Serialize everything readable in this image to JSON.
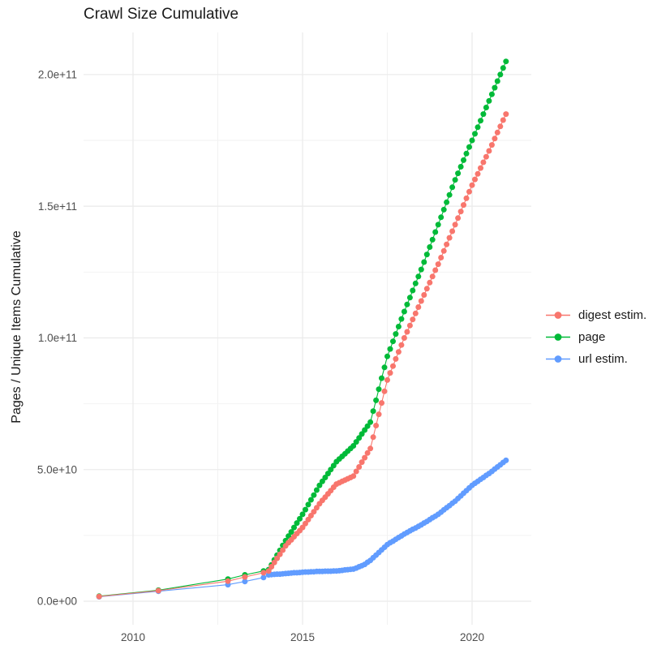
{
  "title": "Crawl Size Cumulative",
  "y_axis_title": "Pages / Unique Items Cumulative",
  "colors": {
    "background": "#FFFFFF",
    "digest": "#F8766D",
    "page": "#00BA38",
    "url": "#619CFF",
    "grid_major": "#EBEBEB",
    "grid_minor": "#F2F2F2",
    "tick_text": "#4D4D4D",
    "title_text": "#1A1A1A"
  },
  "legend": {
    "items": [
      {
        "label": "digest estim.",
        "series_key": "digest"
      },
      {
        "label": "page",
        "series_key": "page"
      },
      {
        "label": "url estim.",
        "series_key": "url"
      }
    ]
  },
  "chart_data": {
    "type": "scatter",
    "title": "Crawl Size Cumulative",
    "xlabel": "",
    "ylabel": "Pages / Unique Items Cumulative",
    "legend_position": "right",
    "grid": "on",
    "xlim": [
      2008.5,
      2021.7
    ],
    "ylim": [
      0,
      216000000000.0
    ],
    "y_scale": 1000000000.0,
    "y_scale_note": "series y values are in billions (multiply by 1e9)",
    "x_axis": {
      "major_ticks": [
        {
          "value": 2010,
          "label": "2010"
        },
        {
          "value": 2015,
          "label": "2015"
        },
        {
          "value": 2020,
          "label": "2020"
        }
      ],
      "minor_ticks": [
        2012.5,
        2017.5
      ]
    },
    "y_axis": {
      "major_ticks": [
        {
          "value": 0,
          "label": "0.0e+00"
        },
        {
          "value": 50,
          "label": "5.0e+10"
        },
        {
          "value": 100,
          "label": "1.0e+11"
        },
        {
          "value": 150,
          "label": "1.5e+11"
        },
        {
          "value": 200,
          "label": "2.0e+11"
        }
      ],
      "minor_ticks": [
        25,
        75,
        125,
        175
      ]
    },
    "x": [
      2009.0,
      2010.75,
      2012.8,
      2013.3,
      2013.85,
      2014.0,
      2014.083,
      2014.167,
      2014.25,
      2014.333,
      2014.417,
      2014.5,
      2014.583,
      2014.667,
      2014.75,
      2014.833,
      2014.917,
      2015.0,
      2015.083,
      2015.167,
      2015.25,
      2015.333,
      2015.417,
      2015.5,
      2015.583,
      2015.667,
      2015.75,
      2015.833,
      2015.917,
      2016.0,
      2016.083,
      2016.167,
      2016.25,
      2016.333,
      2016.417,
      2016.5,
      2016.583,
      2016.667,
      2016.75,
      2016.833,
      2016.917,
      2017.0,
      2017.083,
      2017.167,
      2017.25,
      2017.333,
      2017.417,
      2017.5,
      2017.583,
      2017.667,
      2017.75,
      2017.833,
      2017.917,
      2018.0,
      2018.083,
      2018.167,
      2018.25,
      2018.333,
      2018.417,
      2018.5,
      2018.583,
      2018.667,
      2018.75,
      2018.833,
      2018.917,
      2019.0,
      2019.083,
      2019.167,
      2019.25,
      2019.333,
      2019.417,
      2019.5,
      2019.583,
      2019.667,
      2019.75,
      2019.833,
      2019.917,
      2020.0,
      2020.083,
      2020.167,
      2020.25,
      2020.333,
      2020.417,
      2020.5,
      2020.583,
      2020.667,
      2020.75,
      2020.833,
      2020.917,
      2021.0
    ],
    "series": [
      {
        "name": "digest estim.",
        "key": "digest",
        "color": "#F8766D",
        "z": 3,
        "y": [
          1.8,
          4.0,
          7.6,
          9.2,
          10.8,
          11.5,
          13.1,
          14.7,
          16.3,
          17.8,
          19.4,
          21,
          22.2,
          23.3,
          24.5,
          25.7,
          26.8,
          28,
          29.5,
          31,
          32.5,
          34,
          35.5,
          37,
          38.3,
          39.5,
          40.8,
          42,
          43.3,
          44.5,
          45,
          45.5,
          46,
          46.5,
          47,
          47.5,
          49.3,
          51,
          52.8,
          54.5,
          56.3,
          58,
          62.3,
          66.7,
          71,
          75.3,
          79.7,
          84,
          86.7,
          89.3,
          92,
          94.7,
          97.3,
          100,
          102.3,
          104.7,
          107,
          109.3,
          111.7,
          114,
          116.3,
          118.7,
          121,
          123.3,
          125.7,
          128,
          130.5,
          133,
          135.5,
          138,
          140.5,
          143,
          145.5,
          148,
          150.5,
          153,
          155.5,
          158,
          160.2,
          162.3,
          164.5,
          166.7,
          168.8,
          171,
          173.3,
          175.7,
          178,
          180.3,
          182.7,
          185
        ]
      },
      {
        "name": "page",
        "key": "page",
        "color": "#00BA38",
        "z": 2,
        "y": [
          1.9,
          4.2,
          8.4,
          10.0,
          11.5,
          12,
          13.8,
          15.7,
          17.5,
          19.3,
          21.2,
          23,
          24.7,
          26.3,
          28,
          29.7,
          31.3,
          33,
          34.8,
          36.7,
          38.5,
          40.3,
          42.2,
          44,
          45.5,
          47,
          48.5,
          50,
          51.5,
          53,
          54,
          55,
          56,
          57,
          58,
          59,
          60.5,
          62,
          63.5,
          65,
          66.5,
          68,
          72.2,
          76.3,
          80.5,
          84.7,
          88.8,
          93,
          95.8,
          98.7,
          101.5,
          104.3,
          107.2,
          110,
          112.7,
          115.3,
          118,
          120.7,
          123.3,
          126,
          128.8,
          131.7,
          134.5,
          137.3,
          140.2,
          143,
          145.8,
          148.7,
          151.5,
          154.3,
          157.2,
          160,
          162.5,
          165,
          167.5,
          170,
          172.5,
          175,
          177.5,
          180,
          182.5,
          185,
          187.5,
          190,
          192.5,
          195,
          197.5,
          200,
          202.5,
          205
        ]
      },
      {
        "name": "url estim.",
        "key": "url",
        "color": "#619CFF",
        "z": 1,
        "y": [
          1.7,
          3.8,
          6.3,
          7.5,
          9.0,
          10,
          10.1,
          10.2,
          10.3,
          10.3,
          10.4,
          10.5,
          10.6,
          10.7,
          10.8,
          10.8,
          10.9,
          11,
          11.1,
          11.1,
          11.2,
          11.2,
          11.3,
          11.3,
          11.3,
          11.4,
          11.4,
          11.4,
          11.5,
          11.5,
          11.6,
          11.7,
          11.9,
          12,
          12.1,
          12.2,
          12.6,
          13.1,
          13.5,
          14,
          14.8,
          15.5,
          16.5,
          17.5,
          18.5,
          19.5,
          20.5,
          21.5,
          22.2,
          22.8,
          23.5,
          24.2,
          24.8,
          25.5,
          26.1,
          26.7,
          27.3,
          27.8,
          28.4,
          29,
          29.7,
          30.3,
          31,
          31.7,
          32.3,
          33,
          33.8,
          34.7,
          35.5,
          36.3,
          37.2,
          38,
          39,
          40,
          41,
          42,
          43,
          44,
          44.8,
          45.5,
          46.3,
          47,
          47.8,
          48.5,
          49.3,
          50.2,
          51,
          51.8,
          52.7,
          53.5
        ]
      }
    ]
  }
}
